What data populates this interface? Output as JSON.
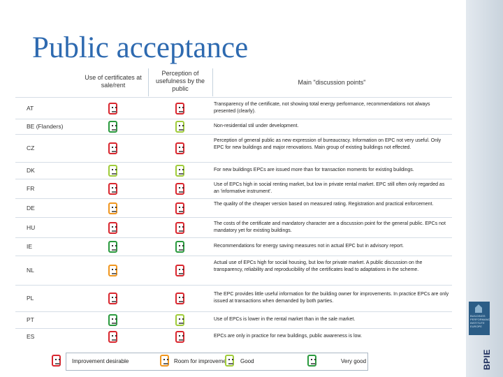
{
  "title": "Public acceptance",
  "branding": {
    "logo_text": "BPIE",
    "box_lines": [
      "BUILDINGS",
      "PERFORMANCE",
      "INSTITUTE",
      "EUROPE"
    ]
  },
  "colors": {
    "improvement_desirable": "#d9262e",
    "room_for_improvement": "#f0961e",
    "good": "#a0cc3a",
    "very_good": "#2a9a3e",
    "title": "#2e6ab0"
  },
  "headers": {
    "use": "Use of certificates at sale/rent",
    "perception": "Perception of usefulness by the public",
    "discussion": "Main \"discussion points\""
  },
  "rows": [
    {
      "country": "AT",
      "use": "red",
      "perception": "red",
      "discussion": "Transparency of the certificate, not showing total energy performance, recommendations not always presented (clearly)."
    },
    {
      "country": "BE (Flanders)",
      "use": "green",
      "perception": "lime",
      "discussion": "Non-residential stil under development."
    },
    {
      "country": "CZ",
      "use": "red",
      "perception": "red",
      "discussion": "Perception of general public as new expression of bureaucracy. Information on EPC not very useful. Only EPC for new buildings and major renovations. Main group of existing buildings not effected."
    },
    {
      "country": "DK",
      "use": "lime",
      "perception": "lime",
      "discussion": "For new buildings EPCs are issued more than for transaction moments for existing buildings."
    },
    {
      "country": "FR",
      "use": "red",
      "perception": "red",
      "discussion": "Use of EPCs high in social renting market, but low in private rental market. EPC still often only regarded as an 'informative instrument'."
    },
    {
      "country": "DE",
      "use": "orange",
      "perception": "red",
      "discussion": "The quality of the cheaper version based on measured rating. Registration and practical enforcement."
    },
    {
      "country": "HU",
      "use": "red",
      "perception": "red",
      "discussion": "The costs of the certificate and mandatory character are a discussion point for the general public. EPCs not mandatory yet for existing buildings."
    },
    {
      "country": "IE",
      "use": "green",
      "perception": "green",
      "discussion": "Recommendations for energy saving measures not in actual EPC but in advisory report."
    },
    {
      "country": "NL",
      "use": "orange",
      "perception": "red",
      "discussion": "Actual use of EPCs high for social housing, but low for private market. A public discussion on the transparency, reliability and reproducibility of the certificates lead to adaptations in the scheme."
    },
    {
      "country": "PL",
      "use": "red",
      "perception": "red",
      "discussion": "The EPC provides little useful information for the building owner for improvements. In practice EPCs are only issued at transactions when demanded by both parties."
    },
    {
      "country": "PT",
      "use": "green",
      "perception": "lime",
      "discussion": "Use of EPCs is lower in the rental market than in the sale market."
    },
    {
      "country": "ES",
      "use": "red",
      "perception": "red",
      "discussion": "EPCs are only in practice for new buildings, public awareness is low."
    }
  ],
  "legend": [
    {
      "color": "red",
      "label": "Improvement desirable"
    },
    {
      "color": "orange",
      "label": "Room for improvement"
    },
    {
      "color": "lime",
      "label": "Good"
    },
    {
      "color": "green",
      "label": "Very good"
    }
  ]
}
